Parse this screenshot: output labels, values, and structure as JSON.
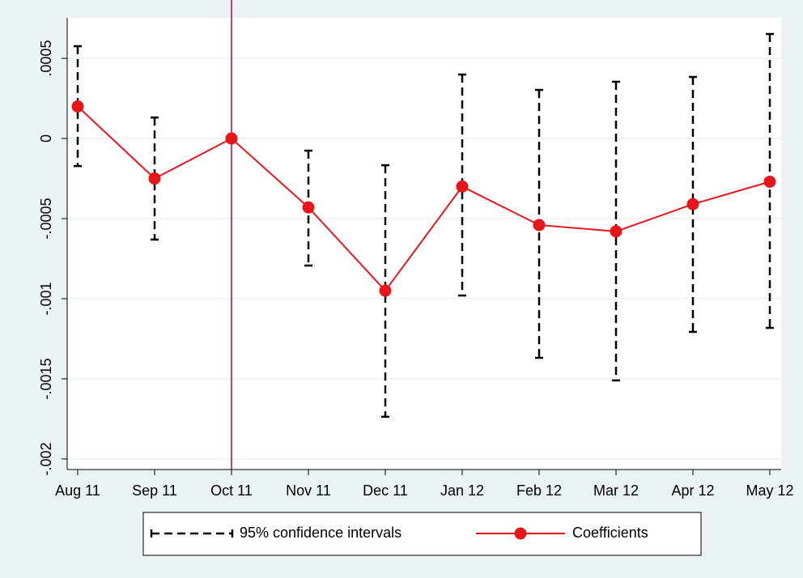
{
  "chart_data": {
    "type": "line",
    "categories": [
      "Aug 11",
      "Sep 11",
      "Oct 11",
      "Nov 11",
      "Dec 11",
      "Jan 12",
      "Feb 12",
      "Mar 12",
      "Apr 12",
      "May 12"
    ],
    "series": [
      {
        "name": "95% confidence intervals",
        "color": "#000000",
        "upper": [
          0.000576,
          0.000131,
          null,
          -7.6e-05,
          -0.000167,
          0.000399,
          0.000303,
          0.000354,
          0.000384,
          0.000652
        ],
        "lower": [
          -0.000172,
          -0.000631,
          null,
          -0.000793,
          -0.001737,
          -0.00098,
          -0.001369,
          -0.00151,
          -0.001207,
          -0.001182
        ]
      },
      {
        "name": "Coefficients",
        "color": "#e8161b",
        "values": [
          0.0002,
          -0.00025,
          0,
          -0.00043,
          -0.00095,
          -0.0003,
          -0.00054,
          -0.00058,
          -0.00041,
          -0.00027
        ]
      }
    ],
    "ylim": [
      -0.002066,
      0.000753
    ],
    "yticks": [
      {
        "value": 0.0005,
        "label": ".0005"
      },
      0,
      {
        "value": -0.0005,
        "label": "-.0005"
      },
      {
        "value": -0.001,
        "label": "-.001"
      },
      {
        "value": -0.0015,
        "label": "-.0015"
      },
      {
        "value": -0.002,
        "label": "-.002"
      }
    ],
    "grid": true,
    "vline": {
      "category": "Oct 11",
      "color": "#c10534"
    },
    "legend": "bottom"
  }
}
